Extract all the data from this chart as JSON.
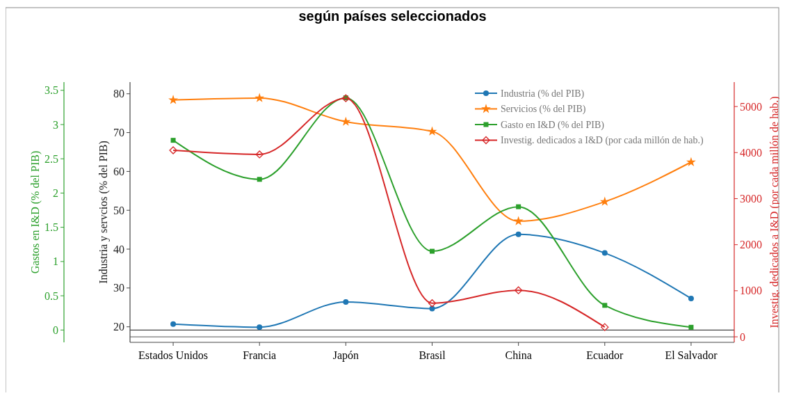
{
  "chart_data": {
    "type": "line",
    "title": "según países seleccionados",
    "categories": [
      "Estados Unidos",
      "Francia",
      "Japón",
      "Brasil",
      "China",
      "Ecuador",
      "El Salvador"
    ],
    "ylabel": "Industria y servcios (% del PIB)",
    "ylim": [
      16,
      83
    ],
    "yticks": [
      20,
      30,
      40,
      50,
      60,
      70,
      80
    ],
    "y2label": "Investig. dedicados a I&D (por cada millón de hab.)",
    "y2lim": [
      -120,
      5530
    ],
    "y2ticks": [
      0,
      1000,
      2000,
      3000,
      4000,
      5000
    ],
    "y3label": "Gastos en I&D (% del PIB)",
    "y3lim": [
      -0.18,
      3.62
    ],
    "y3ticks": [
      0,
      0.5,
      1,
      1.5,
      2,
      2.5,
      3,
      3.5
    ],
    "series": [
      {
        "name": "Industria (% del PIB)",
        "color": "#1f77b4",
        "marker": "circle",
        "values": [
          20.7,
          19.9,
          26.4,
          24.7,
          43.8,
          39.0,
          27.3
        ]
      },
      {
        "name": "Servicios (% del PIB)",
        "color": "#ff7f0e",
        "marker": "star",
        "values": [
          78.4,
          78.9,
          72.8,
          70.3,
          47.2,
          52.2,
          62.4
        ]
      },
      {
        "name": "Gasto en I&D (% del PIB)",
        "color": "#2ca02c",
        "marker": "square",
        "axis": "y3",
        "values": [
          2.77,
          2.2,
          3.39,
          1.15,
          1.8,
          0.36,
          0.04
        ]
      },
      {
        "name": "Investig. dedicados a I&D (por cada millón de hab.)",
        "color": "#d62728",
        "marker": "diamond",
        "axis": "y2",
        "values": [
          4050,
          3960,
          5180,
          730,
          1010,
          210,
          null
        ]
      }
    ],
    "ref_lines": [
      {
        "axis": "y3",
        "value": 0,
        "color": "#444444"
      },
      {
        "axis": "y2",
        "value": 0,
        "color": "#777777"
      }
    ],
    "legend": "top right",
    "grid": false,
    "line_style": "solid"
  }
}
